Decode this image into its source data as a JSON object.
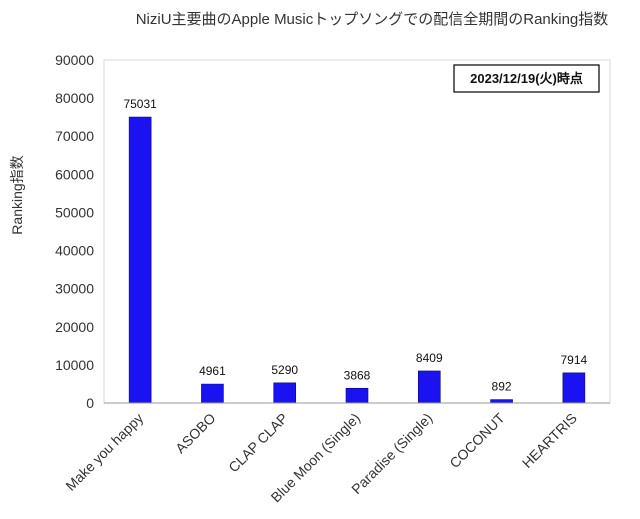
{
  "chart_data": {
    "type": "bar",
    "title": "NiziU主要曲のApple Musicトップソングでの配信全期間のRanking指数",
    "xlabel": "",
    "ylabel": "Ranking指数",
    "categories": [
      "Make you happy",
      "ASOBO",
      "CLAP CLAP",
      "Blue Moon (Single)",
      "Paradise (Single)",
      "COCONUT",
      "HEARTRIS"
    ],
    "series": [
      {
        "values": [
          75031,
          4961,
          5290,
          3868,
          8409,
          892,
          7914
        ],
        "color": "#1a12f0"
      }
    ],
    "ylim": [
      0,
      90000
    ],
    "yticks": [
      0,
      10000,
      20000,
      30000,
      40000,
      50000,
      60000,
      70000,
      80000,
      90000
    ],
    "grid": false,
    "legend": "none",
    "annotation": "2023/12/19(火)時点"
  }
}
